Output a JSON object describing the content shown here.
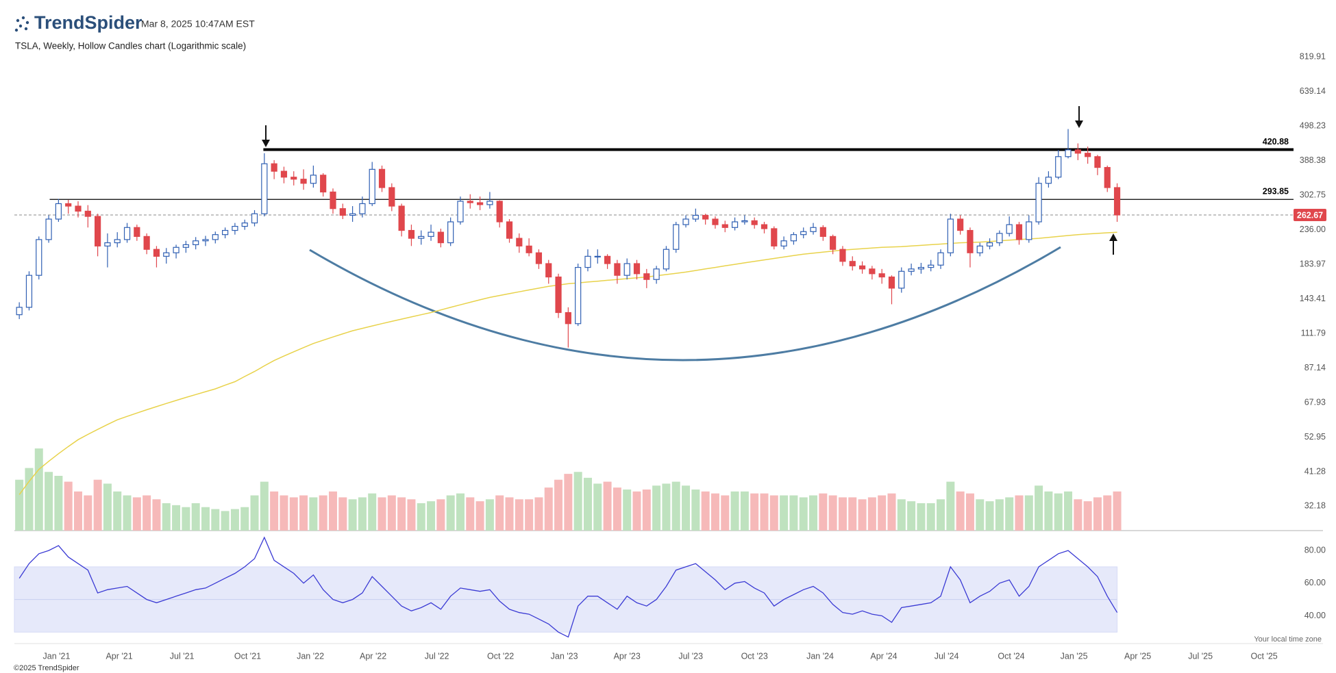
{
  "chart_data": {
    "type": "candlestick",
    "brand": "TrendSpider",
    "timestamp": "Mar 8, 2025 10:47AM EST",
    "title": "TSLA, Weekly, Hollow Candles chart (Logarithmic scale)",
    "timezone_note": "Your local time zone",
    "footer": "©2025 TrendSpider",
    "log_scale": true,
    "grid": false,
    "up_color": "#2f5fb3",
    "down_color": "#e0474c",
    "ma_color": "#e8d24a",
    "ylim": [
      27,
      920
    ],
    "yticks": [
      819.91,
      639.14,
      498.23,
      388.38,
      302.75,
      {
        "value": 236,
        "label": "236.00"
      },
      183.97,
      143.41,
      111.79,
      87.14,
      67.93,
      52.95,
      41.28,
      32.18
    ],
    "xlim": [
      -0.5,
      133
    ],
    "xticks": [
      {
        "value": 3.8,
        "label": "Jan '21"
      },
      {
        "value": 10.2,
        "label": "Apr '21"
      },
      {
        "value": 16.6,
        "label": "Jul '21"
      },
      {
        "value": 23.3,
        "label": "Oct '21"
      },
      {
        "value": 29.7,
        "label": "Jan '22"
      },
      {
        "value": 36.1,
        "label": "Apr '22"
      },
      {
        "value": 42.6,
        "label": "Jul '22"
      },
      {
        "value": 49.1,
        "label": "Oct '22"
      },
      {
        "value": 55.6,
        "label": "Jan '23"
      },
      {
        "value": 62.0,
        "label": "Apr '23"
      },
      {
        "value": 68.5,
        "label": "Jul '23"
      },
      {
        "value": 75.0,
        "label": "Oct '23"
      },
      {
        "value": 81.7,
        "label": "Jan '24"
      },
      {
        "value": 88.2,
        "label": "Apr '24"
      },
      {
        "value": 94.6,
        "label": "Jul '24"
      },
      {
        "value": 101.2,
        "label": "Oct '24"
      },
      {
        "value": 107.6,
        "label": "Jan '25"
      },
      {
        "value": 114.1,
        "label": "Apr '25"
      },
      {
        "value": 120.5,
        "label": "Jul '25"
      },
      {
        "value": 127.0,
        "label": "Oct '25"
      }
    ],
    "levels": [
      420.88,
      293.85
    ],
    "last_price": 262.67,
    "ohlc": [
      [
        128,
        140,
        124,
        135
      ],
      [
        135,
        175,
        132,
        170
      ],
      [
        170,
        225,
        165,
        220
      ],
      [
        220,
        262,
        215,
        255
      ],
      [
        255,
        295,
        250,
        285
      ],
      [
        285,
        293,
        265,
        280
      ],
      [
        280,
        290,
        258,
        270
      ],
      [
        270,
        282,
        240,
        260
      ],
      [
        260,
        265,
        195,
        210
      ],
      [
        210,
        230,
        180,
        215
      ],
      [
        215,
        232,
        208,
        220
      ],
      [
        220,
        248,
        215,
        240
      ],
      [
        240,
        245,
        218,
        225
      ],
      [
        225,
        230,
        198,
        205
      ],
      [
        205,
        210,
        180,
        195
      ],
      [
        195,
        207,
        185,
        200
      ],
      [
        200,
        212,
        192,
        208
      ],
      [
        208,
        218,
        200,
        212
      ],
      [
        212,
        224,
        205,
        218
      ],
      [
        218,
        226,
        210,
        220
      ],
      [
        220,
        233,
        214,
        228
      ],
      [
        228,
        240,
        222,
        235
      ],
      [
        235,
        248,
        228,
        242
      ],
      [
        242,
        254,
        236,
        248
      ],
      [
        248,
        272,
        242,
        265
      ],
      [
        265,
        410,
        260,
        380
      ],
      [
        380,
        390,
        340,
        360
      ],
      [
        360,
        372,
        330,
        345
      ],
      [
        345,
        360,
        325,
        340
      ],
      [
        340,
        365,
        315,
        330
      ],
      [
        330,
        375,
        320,
        350
      ],
      [
        350,
        355,
        300,
        310
      ],
      [
        310,
        318,
        265,
        275
      ],
      [
        275,
        285,
        255,
        262
      ],
      [
        262,
        280,
        250,
        265
      ],
      [
        265,
        300,
        258,
        285
      ],
      [
        285,
        385,
        280,
        365
      ],
      [
        365,
        375,
        310,
        320
      ],
      [
        320,
        330,
        270,
        280
      ],
      [
        280,
        285,
        225,
        235
      ],
      [
        235,
        245,
        210,
        222
      ],
      [
        222,
        235,
        212,
        225
      ],
      [
        225,
        245,
        218,
        232
      ],
      [
        232,
        238,
        208,
        215
      ],
      [
        215,
        258,
        210,
        250
      ],
      [
        250,
        300,
        245,
        290
      ],
      [
        290,
        305,
        275,
        287
      ],
      [
        287,
        300,
        272,
        283
      ],
      [
        283,
        310,
        275,
        290
      ],
      [
        290,
        292,
        240,
        250
      ],
      [
        250,
        255,
        215,
        222
      ],
      [
        222,
        230,
        200,
        210
      ],
      [
        210,
        222,
        195,
        200
      ],
      [
        200,
        205,
        178,
        185
      ],
      [
        185,
        190,
        160,
        168
      ],
      [
        168,
        172,
        125,
        130
      ],
      [
        130,
        135,
        101,
        120
      ],
      [
        120,
        185,
        118,
        180
      ],
      [
        180,
        205,
        175,
        195
      ],
      [
        195,
        205,
        185,
        195
      ],
      [
        195,
        198,
        178,
        185
      ],
      [
        185,
        190,
        160,
        170
      ],
      [
        170,
        192,
        165,
        185
      ],
      [
        185,
        190,
        165,
        172
      ],
      [
        172,
        178,
        155,
        165
      ],
      [
        165,
        182,
        160,
        178
      ],
      [
        178,
        210,
        175,
        205
      ],
      [
        205,
        250,
        200,
        245
      ],
      [
        245,
        262,
        240,
        255
      ],
      [
        255,
        275,
        250,
        262
      ],
      [
        262,
        265,
        245,
        255
      ],
      [
        255,
        260,
        238,
        245
      ],
      [
        245,
        252,
        232,
        240
      ],
      [
        240,
        258,
        235,
        250
      ],
      [
        250,
        262,
        245,
        252
      ],
      [
        252,
        258,
        238,
        245
      ],
      [
        245,
        250,
        230,
        238
      ],
      [
        238,
        242,
        205,
        210
      ],
      [
        210,
        225,
        205,
        218
      ],
      [
        218,
        232,
        212,
        228
      ],
      [
        228,
        240,
        222,
        233
      ],
      [
        233,
        248,
        228,
        240
      ],
      [
        240,
        244,
        218,
        225
      ],
      [
        225,
        228,
        198,
        205
      ],
      [
        205,
        210,
        182,
        188
      ],
      [
        188,
        195,
        176,
        182
      ],
      [
        182,
        188,
        172,
        178
      ],
      [
        178,
        182,
        165,
        172
      ],
      [
        172,
        178,
        160,
        168
      ],
      [
        168,
        170,
        138,
        155
      ],
      [
        155,
        180,
        150,
        175
      ],
      [
        175,
        185,
        170,
        178
      ],
      [
        178,
        186,
        172,
        180
      ],
      [
        180,
        190,
        175,
        183
      ],
      [
        183,
        205,
        178,
        200
      ],
      [
        200,
        265,
        195,
        255
      ],
      [
        255,
        262,
        228,
        235
      ],
      [
        235,
        240,
        180,
        200
      ],
      [
        200,
        215,
        195,
        210
      ],
      [
        210,
        222,
        205,
        215
      ],
      [
        215,
        235,
        210,
        230
      ],
      [
        230,
        260,
        225,
        245
      ],
      [
        245,
        250,
        212,
        220
      ],
      [
        220,
        262,
        215,
        250
      ],
      [
        250,
        345,
        245,
        330
      ],
      [
        330,
        360,
        320,
        345
      ],
      [
        345,
        420,
        340,
        400
      ],
      [
        400,
        488,
        395,
        420
      ],
      [
        420,
        440,
        390,
        410
      ],
      [
        410,
        430,
        380,
        400
      ],
      [
        400,
        405,
        350,
        370
      ],
      [
        370,
        375,
        310,
        320
      ],
      [
        320,
        330,
        250,
        262.67
      ]
    ],
    "volume": [
      1300,
      1600,
      2100,
      1500,
      1400,
      1250,
      1000,
      900,
      1300,
      1200,
      1000,
      900,
      850,
      900,
      800,
      700,
      650,
      600,
      700,
      600,
      550,
      500,
      550,
      600,
      900,
      1250,
      1000,
      900,
      850,
      900,
      850,
      900,
      1000,
      850,
      800,
      850,
      950,
      850,
      900,
      850,
      800,
      700,
      750,
      800,
      900,
      950,
      850,
      750,
      800,
      900,
      850,
      800,
      800,
      850,
      1100,
      1300,
      1450,
      1500,
      1350,
      1200,
      1250,
      1100,
      1050,
      1000,
      1050,
      1150,
      1200,
      1250,
      1150,
      1050,
      1000,
      950,
      900,
      1000,
      1000,
      950,
      950,
      900,
      900,
      900,
      850,
      900,
      950,
      900,
      850,
      850,
      800,
      850,
      900,
      950,
      800,
      750,
      700,
      700,
      800,
      1250,
      1000,
      950,
      800,
      750,
      800,
      850,
      900,
      900,
      1150,
      1000,
      950,
      1000,
      800,
      750,
      850,
      900,
      1000
    ],
    "moving_average": [
      35,
      38.5,
      42,
      44.5,
      47,
      49.5,
      52,
      54,
      56,
      58,
      60,
      61.5,
      63,
      64.5,
      66,
      67.5,
      69,
      70.5,
      72,
      73.5,
      75,
      77,
      79,
      82,
      85,
      88.5,
      92,
      95,
      98,
      101,
      104,
      106.5,
      109,
      111.5,
      114,
      116,
      118,
      120,
      122,
      124,
      126,
      128,
      130,
      132.5,
      135,
      137.5,
      140,
      142.5,
      145,
      147,
      149,
      151,
      153,
      155,
      157,
      158.5,
      160,
      161,
      162,
      163,
      164,
      165,
      166,
      167,
      168,
      169.5,
      171,
      172.5,
      174,
      176,
      178,
      180,
      182,
      184,
      186,
      188,
      190,
      192,
      194,
      196,
      198,
      199.5,
      201,
      202.5,
      204,
      205,
      206,
      207,
      208,
      208.5,
      209,
      210,
      211,
      212,
      213,
      214,
      215,
      215.5,
      216,
      217,
      218,
      219,
      220,
      221,
      222,
      223.5,
      225,
      226.5,
      228,
      229,
      230,
      231,
      232
    ],
    "rsi": {
      "color": "#3a3ad4",
      "band_color": "#e6e9fa",
      "ylim": [
        23,
        88
      ],
      "yticks": [
        {
          "value": 80,
          "label": "80.00"
        },
        {
          "value": 60,
          "label": "60.00"
        },
        {
          "value": 40,
          "label": "40.00"
        }
      ],
      "band": [
        30,
        70
      ],
      "midline": 50,
      "values": [
        63,
        72,
        78,
        80,
        83,
        76,
        72,
        68,
        54,
        56,
        57,
        58,
        54,
        50,
        48,
        50,
        52,
        54,
        56,
        57,
        60,
        63,
        66,
        70,
        75,
        88,
        74,
        70,
        66,
        60,
        65,
        56,
        50,
        48,
        50,
        54,
        64,
        58,
        52,
        46,
        43,
        45,
        48,
        44,
        52,
        57,
        56,
        55,
        56,
        49,
        44,
        42,
        41,
        38,
        35,
        30,
        27,
        46,
        52,
        52,
        48,
        44,
        52,
        48,
        46,
        50,
        58,
        68,
        70,
        72,
        67,
        62,
        56,
        60,
        61,
        57,
        54,
        46,
        50,
        53,
        56,
        58,
        54,
        47,
        42,
        41,
        43,
        41,
        40,
        36,
        45,
        46,
        47,
        48,
        52,
        70,
        62,
        48,
        52,
        55,
        60,
        62,
        52,
        58,
        70,
        74,
        78,
        80,
        75,
        70,
        64,
        52,
        42
      ]
    }
  }
}
